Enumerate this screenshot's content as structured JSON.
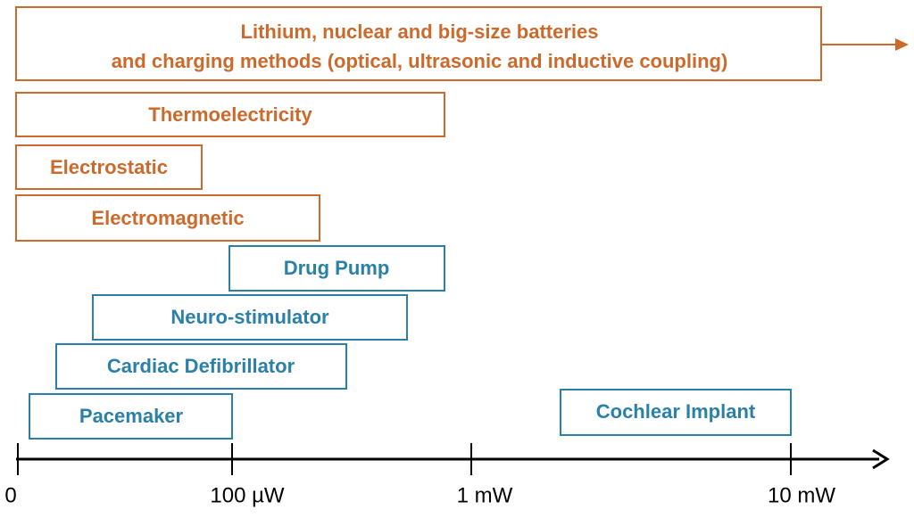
{
  "energy_sources": [
    {
      "lines": [
        "Lithium, nuclear and big-size batteries",
        "and charging methods (optical, ultrasonic and inductive coupling)"
      ]
    },
    {
      "label": "Thermoelectricity"
    },
    {
      "label": "Electrostatic"
    },
    {
      "label": "Electromagnetic"
    }
  ],
  "devices": [
    {
      "label": "Drug Pump"
    },
    {
      "label": "Neuro-stimulator"
    },
    {
      "label": "Cardiac Defibrillator"
    },
    {
      "label": "Pacemaker"
    },
    {
      "label": "Cochlear Implant"
    }
  ],
  "axis": {
    "ticks": [
      "0",
      "100 µW",
      "1 mW",
      "10 mW"
    ]
  }
}
